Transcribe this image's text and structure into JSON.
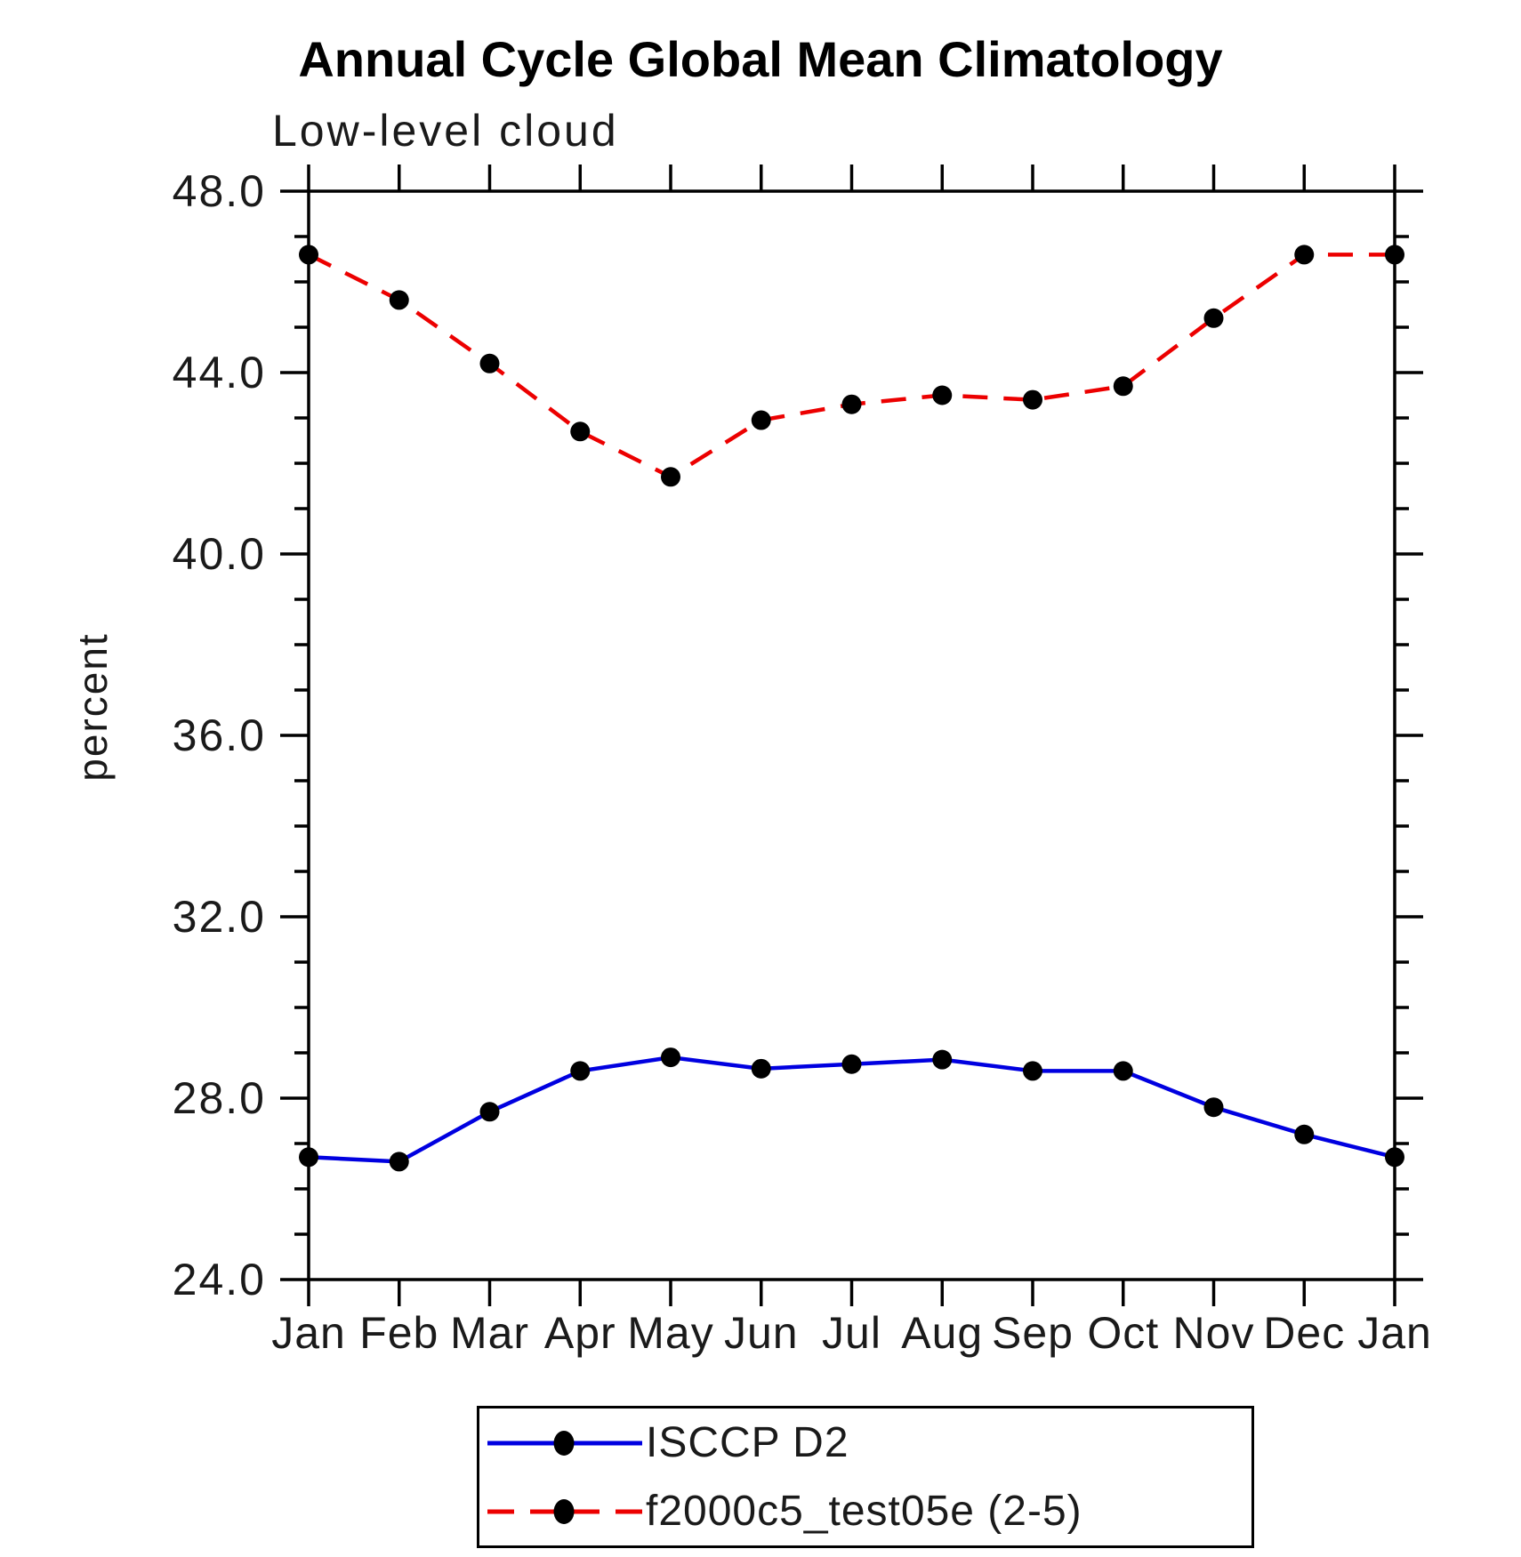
{
  "page": {
    "background": "#ffffff"
  },
  "chart_data": {
    "type": "line",
    "title": "Annual Cycle Global Mean Climatology",
    "subtitle": "Low-level cloud",
    "ylabel": "percent",
    "xlabel": "",
    "x_categories": [
      "Jan",
      "Feb",
      "Mar",
      "Apr",
      "May",
      "Jun",
      "Jul",
      "Aug",
      "Sep",
      "Oct",
      "Nov",
      "Dec",
      "Jan"
    ],
    "ylim": [
      24.0,
      48.0
    ],
    "ytick_labels": [
      "24.0",
      "28.0",
      "32.0",
      "36.0",
      "40.0",
      "44.0",
      "48.0"
    ],
    "ytick_step_major": 4.0,
    "ytick_step_minor": 1.0,
    "grid": "off",
    "legend_position": "bottom-center",
    "marker_color": "#000000",
    "series": [
      {
        "name": "ISCCP D2",
        "color": "#0000e0",
        "line_style": "solid",
        "marker": "filled-black-circle",
        "values": [
          26.7,
          26.6,
          27.7,
          28.6,
          28.9,
          28.65,
          28.75,
          28.85,
          28.6,
          28.6,
          27.8,
          27.2,
          26.7
        ]
      },
      {
        "name": "f2000c5_test05e (2-5)",
        "color": "#ec0000",
        "line_style": "dashed",
        "marker": "filled-black-circle",
        "values": [
          46.6,
          45.6,
          44.2,
          42.7,
          41.7,
          42.95,
          43.3,
          43.5,
          43.4,
          43.7,
          45.2,
          46.6,
          46.6
        ]
      }
    ]
  }
}
